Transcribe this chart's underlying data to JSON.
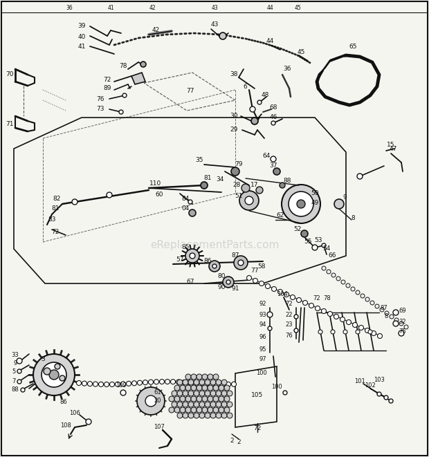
{
  "background_color": "#f5f5f0",
  "border_color": "#222222",
  "watermark_text": "eReplacementParts.com",
  "watermark_color": "#aaaaaa",
  "watermark_fontsize": 11,
  "watermark_alpha": 0.45,
  "fig_width": 6.2,
  "fig_height": 6.61,
  "dpi": 100
}
